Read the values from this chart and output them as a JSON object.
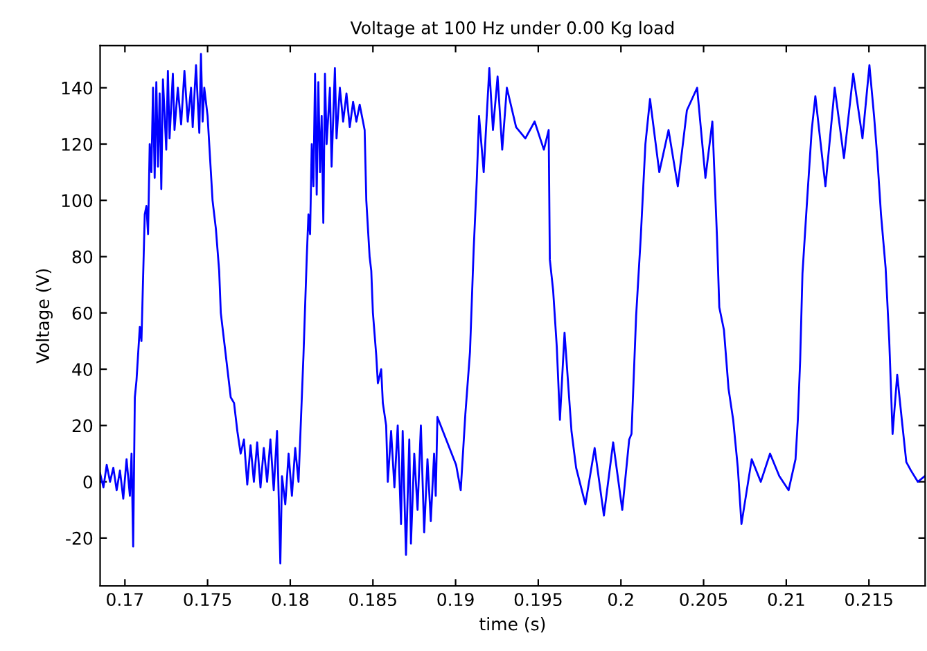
{
  "chart_data": {
    "type": "line",
    "title": "Voltage at 100 Hz under 0.00 Kg load",
    "xlabel": "time (s)",
    "ylabel": "Voltage (V)",
    "xlim": [
      0.1685,
      0.2184
    ],
    "ylim": [
      -37,
      155
    ],
    "xticks": [
      0.17,
      0.175,
      0.18,
      0.185,
      0.19,
      0.195,
      0.2,
      0.205,
      0.21,
      0.215
    ],
    "yticks": [
      -20,
      0,
      20,
      40,
      60,
      80,
      100,
      120,
      140
    ],
    "grid": false,
    "legend": false,
    "series": [
      {
        "color": "#0000ff",
        "x": [
          0.1685,
          0.1687,
          0.1689,
          0.1691,
          0.1693,
          0.1695,
          0.1697,
          0.1699,
          0.1701,
          0.1703,
          0.1704,
          0.1705,
          0.1706,
          0.1707,
          0.1709,
          0.171,
          0.1712,
          0.1713,
          0.1714,
          0.1715,
          0.1716,
          0.1717,
          0.1718,
          0.1719,
          0.172,
          0.1721,
          0.1722,
          0.1723,
          0.1725,
          0.1726,
          0.1727,
          0.1729,
          0.173,
          0.1732,
          0.1734,
          0.1736,
          0.1738,
          0.174,
          0.1741,
          0.1743,
          0.1745,
          0.1746,
          0.1747,
          0.1748,
          0.175,
          0.1752,
          0.1753,
          0.1755,
          0.1757,
          0.1758,
          0.176,
          0.1762,
          0.1764,
          0.1766,
          0.1768,
          0.177,
          0.1772,
          0.1774,
          0.1776,
          0.1778,
          0.178,
          0.1782,
          0.1784,
          0.1786,
          0.1788,
          0.179,
          0.1792,
          0.1793,
          0.1794,
          0.1795,
          0.1797,
          0.1799,
          0.1801,
          0.1803,
          0.1805,
          0.1806,
          0.1808,
          0.181,
          0.1811,
          0.1812,
          0.1813,
          0.1814,
          0.1815,
          0.1816,
          0.1817,
          0.1818,
          0.1819,
          0.182,
          0.1821,
          0.1822,
          0.1824,
          0.1825,
          0.1827,
          0.1828,
          0.183,
          0.1832,
          0.1834,
          0.1836,
          0.1838,
          0.184,
          0.1842,
          0.1844,
          0.1845,
          0.1846,
          0.1848,
          0.1849,
          0.185,
          0.1852,
          0.1853,
          0.1855,
          0.1856,
          0.1858,
          0.1859,
          0.1861,
          0.1863,
          0.1865,
          0.1867,
          0.1868,
          0.187,
          0.1872,
          0.1873,
          0.1875,
          0.1877,
          0.1879,
          0.1881,
          0.1883,
          0.1885,
          0.1887,
          0.1888,
          0.1889,
          0.19003,
          0.19031,
          0.19059,
          0.19087,
          0.19109,
          0.19128,
          0.19142,
          0.1917,
          0.19204,
          0.19226,
          0.19254,
          0.19282,
          0.1931,
          0.19366,
          0.19422,
          0.19478,
          0.19534,
          0.19563,
          0.1957,
          0.1959,
          0.19612,
          0.19631,
          0.19659,
          0.19701,
          0.19729,
          0.19785,
          0.19841,
          0.19897,
          0.19953,
          0.20008,
          0.2005,
          0.20064,
          0.20092,
          0.2012,
          0.20148,
          0.20176,
          0.20232,
          0.20288,
          0.20344,
          0.20399,
          0.20461,
          0.20511,
          0.20553,
          0.20581,
          0.20595,
          0.20623,
          0.20651,
          0.20679,
          0.20707,
          0.20729,
          0.20791,
          0.20846,
          0.20902,
          0.20958,
          0.21014,
          0.21056,
          0.2107,
          0.21084,
          0.21098,
          0.21126,
          0.21154,
          0.21176,
          0.21237,
          0.21293,
          0.21349,
          0.21405,
          0.21461,
          0.21503,
          0.21531,
          0.21551,
          0.21573,
          0.21601,
          0.21623,
          0.21643,
          0.21671,
          0.21699,
          0.21726,
          0.21754,
          0.21796,
          0.21838
        ],
        "values": [
          3,
          -2,
          6,
          0,
          5,
          -3,
          4,
          -6,
          8,
          -5,
          10,
          -23,
          30,
          36,
          55,
          50,
          95,
          98,
          88,
          120,
          110,
          140,
          108,
          142,
          112,
          138,
          104,
          143,
          118,
          146,
          122,
          145,
          125,
          140,
          127,
          146,
          128,
          140,
          126,
          148,
          124,
          152,
          128,
          140,
          130,
          110,
          100,
          90,
          75,
          60,
          50,
          40,
          30,
          28,
          18,
          10,
          15,
          -1,
          13,
          0,
          14,
          -2,
          12,
          0,
          15,
          -3,
          18,
          -5,
          -29,
          2,
          -8,
          10,
          -5,
          12,
          0,
          15,
          45,
          80,
          95,
          88,
          120,
          105,
          145,
          102,
          142,
          110,
          130,
          92,
          145,
          120,
          140,
          112,
          147,
          122,
          140,
          128,
          138,
          126,
          135,
          128,
          134,
          128,
          125,
          100,
          80,
          75,
          60,
          45,
          35,
          40,
          28,
          20,
          0,
          18,
          -2,
          20,
          -15,
          18,
          -26,
          15,
          -22,
          10,
          -10,
          20,
          -18,
          8,
          -14,
          10,
          -5,
          23,
          6,
          -3,
          24,
          46,
          82,
          107,
          130,
          110,
          147,
          125,
          144,
          118,
          140,
          126,
          122,
          128,
          118,
          125,
          79,
          68,
          48,
          22,
          53,
          18,
          5,
          -8,
          12,
          -12,
          14,
          -10,
          15,
          17,
          59,
          87,
          120,
          136,
          110,
          125,
          105,
          132,
          140,
          108,
          128,
          87,
          62,
          54,
          33,
          22,
          5,
          -15,
          8,
          0,
          10,
          2,
          -3,
          8,
          22,
          43,
          74,
          100,
          125,
          137,
          105,
          140,
          115,
          145,
          122,
          148,
          130,
          115,
          95,
          76,
          50,
          17,
          38,
          22,
          7,
          4,
          0,
          2
        ]
      }
    ]
  }
}
